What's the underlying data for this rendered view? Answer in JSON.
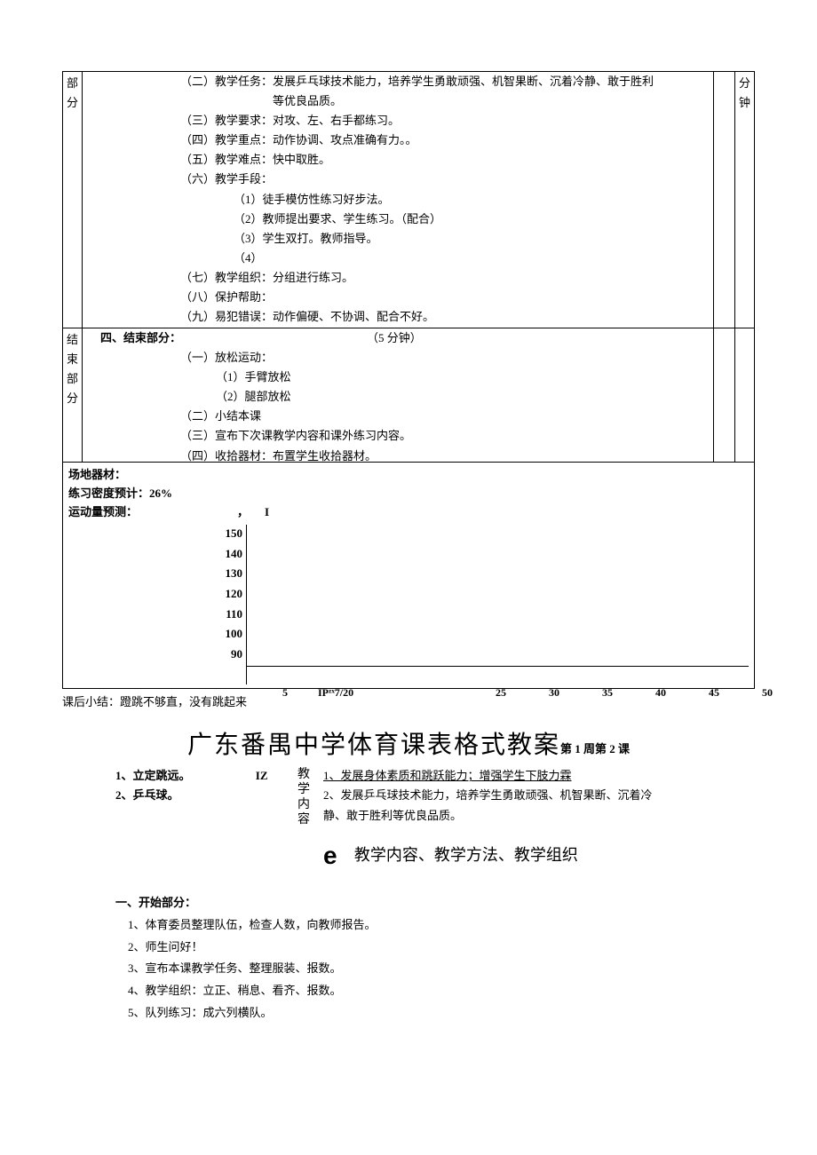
{
  "section1": {
    "label": "部分",
    "rightLabel": "分钟",
    "lines": [
      "（二）教学任务：发展乒乓球技术能力，培养学生勇敢顽强、机智果断、沉着冷静、敢于胜利",
      "　　　　　　　　等优良品质。",
      "（三）教学要求：对攻、左、右手都练习。",
      "（四）教学重点：动作协调、攻点准确有力。。",
      "（五）教学难点：快中取胜。",
      "（六）教学手段：",
      "（1）徒手模仿性练习好步法。",
      "（2）教师提出要求、学生练习。（配合）",
      "（3）学生双打。教师指导。",
      "（4）",
      "（七）教学组织：分组进行练习。",
      "（八）保护帮助：",
      "（九）易犯错误：动作偏硬、不协调、配合不好。"
    ]
  },
  "section2": {
    "label": "结束部分",
    "titleLeft": "四、结束部分：",
    "titleRight": "（5 分钟）",
    "lines": [
      "（一）放松运动：",
      "（1）手臂放松",
      "（2）腿部放松",
      "（二）小结本课",
      "（三）宣布下次课教学内容和课外练习内容。",
      "（四）收拾器材：布置学生收拾器材。"
    ]
  },
  "footer": {
    "l1": "场地器材：",
    "l2": "练习密度预计：26%",
    "l3": "运动量预测：",
    "comma": "，",
    "bar": "I"
  },
  "chart": {
    "yTicks": [
      "150",
      "140",
      "130",
      "120",
      "110",
      "100",
      "90"
    ],
    "xTicks": [
      "5",
      "IPᶻˣ7/20",
      "25",
      "30",
      "35",
      "40",
      "45",
      "50"
    ],
    "xPositions": [
      40,
      80,
      280,
      340,
      400,
      460,
      520,
      580
    ]
  },
  "afterChart": "课后小结：蹬跳不够直，没有跳起来",
  "title2": {
    "main": "广东番禺中学体育课表格式教案",
    "sub": "第 1 周第 2 课"
  },
  "header2": {
    "left1": "1、立定跳远。",
    "left1b": "IZ",
    "left2": "2、乒乓球。",
    "midLabel": "教学内容",
    "r1": "1、发展身体素质和跳跃能力；增强学生下肢力霖",
    "r2": "2、发展乒乓球技术能力，培养学生勇敢顽强、机智果断、沉着冷",
    "r3": "静、敢于胜利等优良品质。"
  },
  "sectionHeading": {
    "e": "e",
    "text": "教学内容、教学方法、教学组织"
  },
  "lesson2": {
    "head": "一、开始部分：",
    "items": [
      "1、体育委员整理队伍，检查人数，向教师报告。",
      "2、师生问好！",
      "3、宣布本课教学任务、整理服装、报数。",
      "4、教学组织：立正、稍息、看齐、报数。",
      "5、队列练习：成六列横队。"
    ]
  }
}
